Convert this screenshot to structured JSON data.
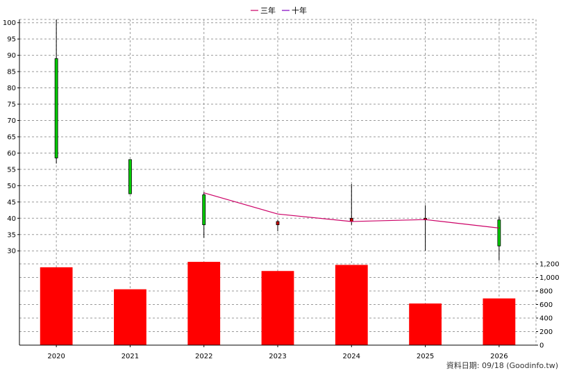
{
  "legend": {
    "ma3_label": "三年",
    "ma10_label": "十年"
  },
  "footer": {
    "text": "資料日期: 09/18  (Goodinfo.tw)"
  },
  "colors": {
    "up": "#00cc00",
    "down": "#cc0000",
    "ma3": "#cc0066",
    "ma10": "#8000c0",
    "volume": "#ff0000",
    "grid": "#999999"
  },
  "chart_data": [
    {
      "type": "candlestick",
      "categories": [
        "2020",
        "2021",
        "2022",
        "2023",
        "2024",
        "2025",
        "2026"
      ],
      "ylim": [
        26,
        101
      ],
      "yticks": [
        30,
        35,
        40,
        45,
        50,
        55,
        60,
        65,
        70,
        75,
        80,
        85,
        90,
        95,
        100
      ],
      "grid": true,
      "legend_position": "top-center",
      "candles": [
        {
          "x": "2020",
          "open": 58.5,
          "close": 89.0,
          "high": 101.0,
          "low": 56.8,
          "color": "up"
        },
        {
          "x": "2021",
          "open": 47.5,
          "close": 58.0,
          "high": 58.0,
          "low": 47.5,
          "color": "up"
        },
        {
          "x": "2022",
          "open": 38.0,
          "close": 47.2,
          "high": 48.0,
          "low": 34.0,
          "color": "up"
        },
        {
          "x": "2023",
          "open": 38.0,
          "close": 39.0,
          "high": 39.5,
          "low": 36.0,
          "color": "down"
        },
        {
          "x": "2024",
          "open": 39.0,
          "close": 40.0,
          "high": 50.5,
          "low": 38.0,
          "color": "down"
        },
        {
          "x": "2025",
          "open": 39.5,
          "close": 40.0,
          "high": 44.0,
          "low": 30.0,
          "color": "down"
        },
        {
          "x": "2026",
          "open": 31.5,
          "close": 39.5,
          "high": 40.5,
          "low": 27.0,
          "color": "up"
        }
      ],
      "series": [
        {
          "name": "三年",
          "x": [
            "2022",
            "2023",
            "2024",
            "2025",
            "2026"
          ],
          "values": [
            47.8,
            41.3,
            39.0,
            39.6,
            37.0
          ]
        }
      ]
    },
    {
      "type": "bar",
      "categories": [
        "2020",
        "2021",
        "2022",
        "2023",
        "2024",
        "2025",
        "2026"
      ],
      "values": [
        1150,
        825,
        1230,
        1095,
        1185,
        615,
        690
      ],
      "ylim": [
        0,
        1200
      ],
      "yticks": [
        0,
        200,
        400,
        600,
        800,
        1000,
        1200
      ],
      "ytick_labels": [
        "0",
        "200",
        "400",
        "600",
        "800",
        "1,000",
        "1,200"
      ],
      "grid": true
    }
  ]
}
